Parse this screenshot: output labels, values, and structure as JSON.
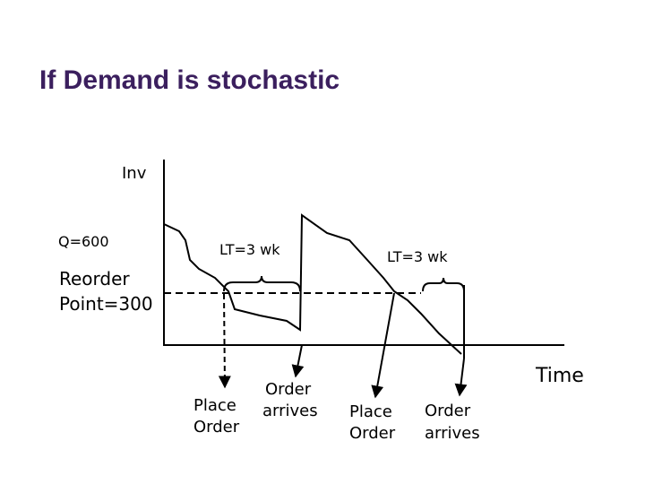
{
  "title": "If Demand is stochastic",
  "axes": {
    "y_label": "Inv",
    "x_label": "Time"
  },
  "levels": {
    "order_quantity": "Q=600",
    "reorder_point": [
      "Reorder",
      "Point=300"
    ]
  },
  "lead_times": [
    "LT=3 wk",
    "LT=3 wk"
  ],
  "events": [
    {
      "label": [
        "Place",
        "Order"
      ]
    },
    {
      "label": [
        "Order",
        "arrives"
      ]
    },
    {
      "label": [
        "Place",
        "Order"
      ]
    },
    {
      "label": [
        "Order",
        "arrives"
      ]
    }
  ]
}
